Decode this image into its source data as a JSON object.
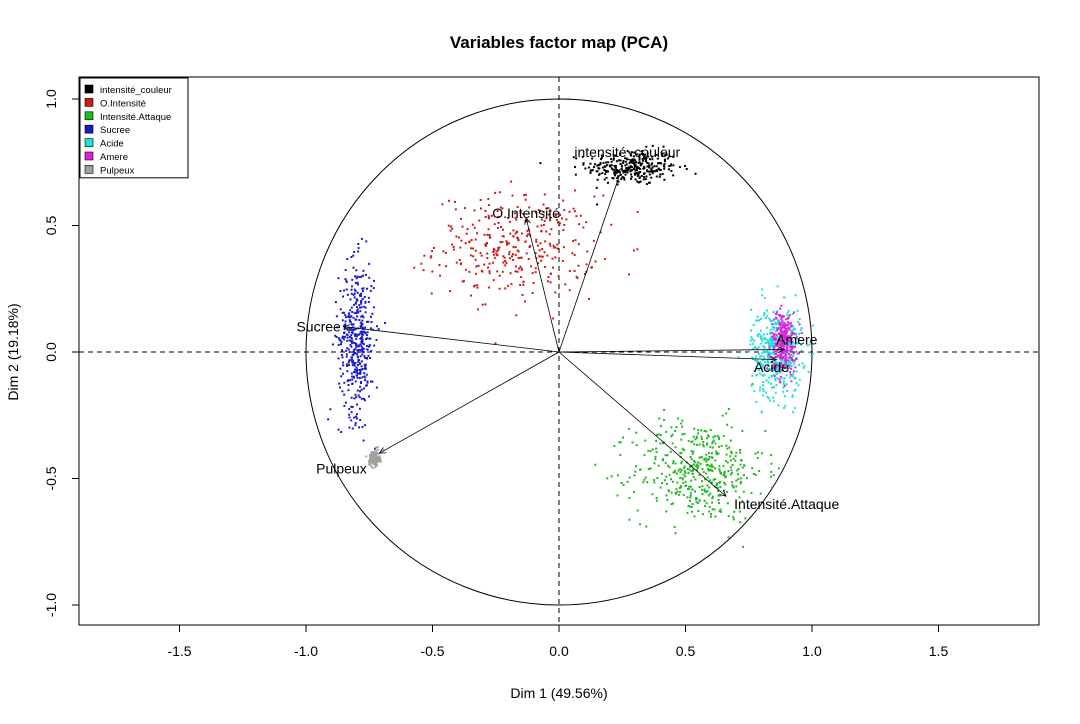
{
  "chart_data": {
    "type": "scatter",
    "title": "Variables factor map (PCA)",
    "xlabel": "Dim 1 (49.56%)",
    "ylabel": "Dim 2 (19.18%)",
    "xlim": [
      -1.9,
      1.9
    ],
    "ylim": [
      -1.08,
      1.08
    ],
    "x_ticks": [
      -1.5,
      -1.0,
      -0.5,
      0.0,
      0.5,
      1.0,
      1.5
    ],
    "x_tick_labels": [
      "-1.5",
      "-1.0",
      "-0.5",
      "0.0",
      "0.5",
      "1.0",
      "1.5"
    ],
    "y_ticks": [
      -1.0,
      -0.5,
      0.0,
      0.5,
      1.0
    ],
    "y_tick_labels": [
      "-1.0",
      "-0.5",
      "0.0",
      "0.5",
      "1.0"
    ],
    "correlation_circle_radius": 1.0,
    "legend_position": "top-left",
    "series": [
      {
        "name": "intensité_couleur",
        "label": "intensité_couleur",
        "color": "#000000",
        "arrow": [
          0.25,
          0.73
        ],
        "cloud_center": [
          0.29,
          0.73
        ],
        "cloud_spread": [
          0.09,
          0.035
        ],
        "count": 300
      },
      {
        "name": "O.Intensité",
        "label": "O.Intensité",
        "color": "#cc1a1a",
        "arrow": [
          -0.13,
          0.53
        ],
        "cloud_center": [
          -0.17,
          0.42
        ],
        "cloud_spread": [
          0.16,
          0.1
        ],
        "count": 340
      },
      {
        "name": "Intensité.Attaque",
        "label": "Intensité.Attaque",
        "color": "#22b822",
        "arrow": [
          0.66,
          -0.57
        ],
        "cloud_center": [
          0.55,
          -0.47
        ],
        "cloud_spread": [
          0.13,
          0.1
        ],
        "count": 440
      },
      {
        "name": "Sucree",
        "label": "Sucree",
        "color": "#1a1acc",
        "arrow": [
          -0.85,
          0.1
        ],
        "cloud_center": [
          -0.8,
          0.05
        ],
        "cloud_spread": [
          0.035,
          0.15
        ],
        "count": 430
      },
      {
        "name": "Acide",
        "label": "Acide",
        "color": "#22dddd",
        "arrow": [
          0.86,
          -0.03
        ],
        "cloud_center": [
          0.86,
          0.0
        ],
        "cloud_spread": [
          0.05,
          0.09
        ],
        "count": 440
      },
      {
        "name": "Amere",
        "label": "Amere",
        "color": "#dd22dd",
        "arrow": [
          0.89,
          0.01
        ],
        "cloud_center": [
          0.89,
          0.04
        ],
        "cloud_spread": [
          0.025,
          0.06
        ],
        "count": 260
      },
      {
        "name": "Pulpeux",
        "label": "Pulpeux",
        "color": "#a0a0a0",
        "arrow": [
          -0.71,
          -0.4
        ],
        "cloud_center": [
          -0.73,
          -0.42
        ],
        "cloud_spread": [
          0.01,
          0.015
        ],
        "count": 150
      }
    ],
    "arrow_labels": [
      {
        "text": "intensité_couleur",
        "x": 0.27,
        "y": 0.79
      },
      {
        "text": "O.Intensité",
        "x": -0.13,
        "y": 0.55
      },
      {
        "text": "Intensité.Attaque",
        "x": 0.9,
        "y": -0.6
      },
      {
        "text": "Sucree",
        "x": -0.95,
        "y": 0.1
      },
      {
        "text": "Acide",
        "x": 0.84,
        "y": -0.06
      },
      {
        "text": "Amere",
        "x": 0.94,
        "y": 0.05
      },
      {
        "text": "Pulpeux",
        "x": -0.86,
        "y": -0.46
      }
    ]
  }
}
